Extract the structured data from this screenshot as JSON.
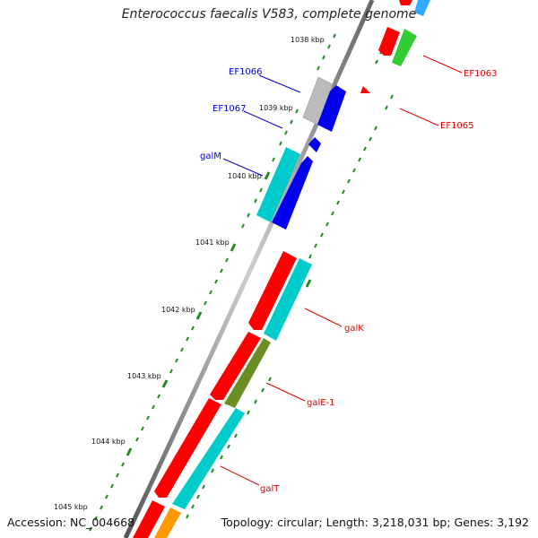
{
  "title": "Enterococcus faecalis V583, complete genome",
  "accession": "Accession: NC_004668",
  "topology": "Topology: circular; Length: 3,218,031 bp; Genes: 3,192",
  "kbp_labels": [
    "1038 kbp",
    "1039 kbp",
    "1040 kbp",
    "1041 kbp",
    "1042 kbp",
    "1043 kbp",
    "1044 kbp",
    "1045 kbp"
  ],
  "gene_labels": {
    "ef1066": "EF1066",
    "ef1067": "EF1067",
    "galm": "galM",
    "ef1063": "EF1063",
    "ef1065": "EF1065",
    "galk": "galK",
    "gale1": "galE-1",
    "galt": "galT"
  },
  "colors": {
    "forward_label": "#0000cc",
    "reverse_label": "#dd0000",
    "red": "#ff0000",
    "blue": "#0000ee",
    "cyan": "#00cccc",
    "olive": "#6b8e23",
    "green": "#33cc33",
    "grey": "#bbbbbb",
    "orange": "#ff9900",
    "backbone": "#777777",
    "ticks": "#228b22"
  }
}
